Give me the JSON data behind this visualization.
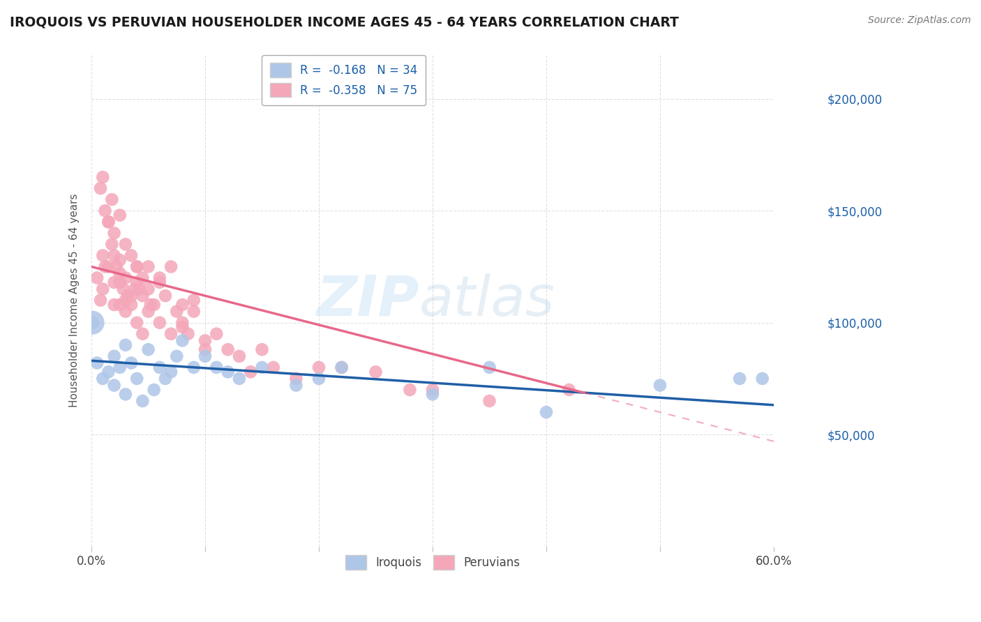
{
  "title": "IROQUOIS VS PERUVIAN HOUSEHOLDER INCOME AGES 45 - 64 YEARS CORRELATION CHART",
  "source": "Source: ZipAtlas.com",
  "ylabel": "Householder Income Ages 45 - 64 years",
  "xlim": [
    0.0,
    0.6
  ],
  "ylim": [
    0,
    220000
  ],
  "yticks": [
    0,
    50000,
    100000,
    150000,
    200000
  ],
  "ytick_labels": [
    "",
    "$50,000",
    "$100,000",
    "$150,000",
    "$200,000"
  ],
  "xticks": [
    0.0,
    0.1,
    0.2,
    0.3,
    0.4,
    0.5,
    0.6
  ],
  "xtick_labels_show": [
    "0.0%",
    "",
    "",
    "",
    "",
    "",
    "60.0%"
  ],
  "legend_r1": "R =  -0.168   N = 34",
  "legend_r2": "R =  -0.358   N = 75",
  "iroquois_color": "#aec6e8",
  "peruvian_color": "#f4a7b9",
  "blue_line_color": "#1f5fa6",
  "pink_line_color": "#e8688a",
  "iroquois_x": [
    0.001,
    0.005,
    0.01,
    0.015,
    0.02,
    0.02,
    0.025,
    0.03,
    0.03,
    0.035,
    0.04,
    0.045,
    0.05,
    0.055,
    0.06,
    0.065,
    0.07,
    0.075,
    0.08,
    0.09,
    0.1,
    0.11,
    0.12,
    0.13,
    0.15,
    0.18,
    0.2,
    0.22,
    0.3,
    0.35,
    0.4,
    0.5,
    0.57,
    0.59
  ],
  "iroquois_y": [
    100000,
    82000,
    75000,
    78000,
    85000,
    72000,
    80000,
    68000,
    90000,
    82000,
    75000,
    65000,
    88000,
    70000,
    80000,
    75000,
    78000,
    85000,
    92000,
    80000,
    85000,
    80000,
    78000,
    75000,
    80000,
    72000,
    75000,
    80000,
    68000,
    80000,
    60000,
    72000,
    75000,
    75000
  ],
  "peruvian_x": [
    0.005,
    0.008,
    0.01,
    0.01,
    0.012,
    0.015,
    0.015,
    0.018,
    0.02,
    0.02,
    0.02,
    0.022,
    0.025,
    0.025,
    0.025,
    0.025,
    0.028,
    0.03,
    0.03,
    0.03,
    0.032,
    0.035,
    0.035,
    0.038,
    0.04,
    0.04,
    0.04,
    0.042,
    0.045,
    0.045,
    0.05,
    0.05,
    0.052,
    0.055,
    0.06,
    0.06,
    0.065,
    0.07,
    0.075,
    0.08,
    0.08,
    0.085,
    0.09,
    0.1,
    0.1,
    0.11,
    0.12,
    0.13,
    0.14,
    0.15,
    0.16,
    0.18,
    0.2,
    0.22,
    0.25,
    0.28,
    0.3,
    0.35,
    0.008,
    0.01,
    0.012,
    0.015,
    0.018,
    0.02,
    0.025,
    0.03,
    0.035,
    0.04,
    0.045,
    0.05,
    0.06,
    0.07,
    0.08,
    0.09,
    0.42
  ],
  "peruvian_y": [
    120000,
    110000,
    130000,
    115000,
    125000,
    145000,
    125000,
    135000,
    130000,
    118000,
    108000,
    125000,
    128000,
    108000,
    118000,
    122000,
    115000,
    105000,
    120000,
    110000,
    112000,
    112000,
    108000,
    115000,
    118000,
    100000,
    125000,
    115000,
    112000,
    95000,
    105000,
    115000,
    108000,
    108000,
    118000,
    100000,
    112000,
    95000,
    105000,
    108000,
    98000,
    95000,
    105000,
    92000,
    88000,
    95000,
    88000,
    85000,
    78000,
    88000,
    80000,
    75000,
    80000,
    80000,
    78000,
    70000,
    70000,
    65000,
    160000,
    165000,
    150000,
    145000,
    155000,
    140000,
    148000,
    135000,
    130000,
    125000,
    120000,
    125000,
    120000,
    125000,
    100000,
    110000,
    70000
  ],
  "watermark_zip": "ZIP",
  "watermark_atlas": "atlas",
  "background_color": "#ffffff",
  "grid_color": "#cccccc",
  "pink_line_solid_end": 0.36
}
